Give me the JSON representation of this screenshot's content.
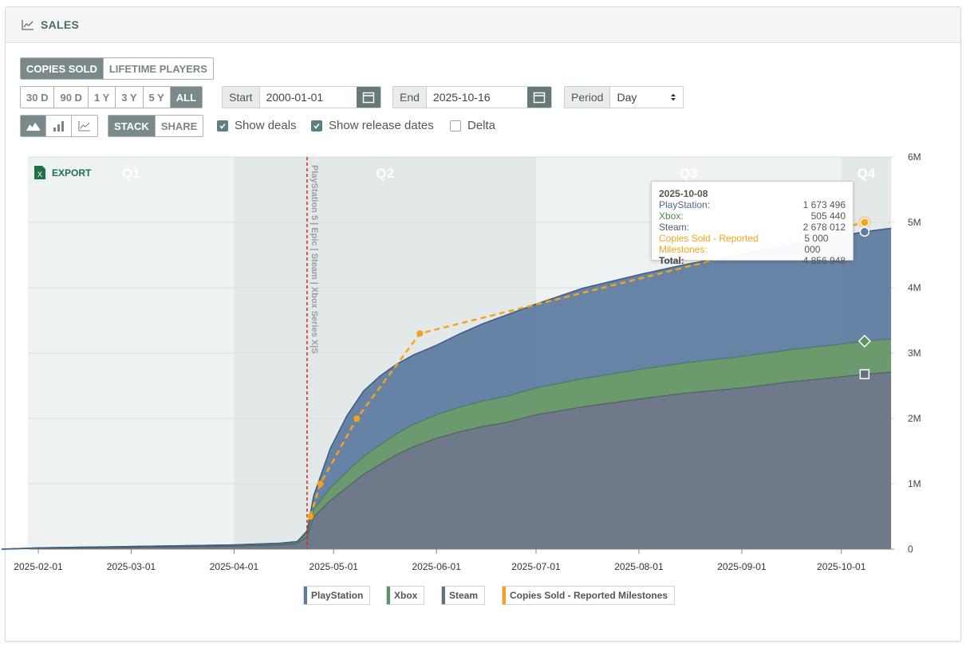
{
  "panel": {
    "title": "SALES",
    "icon": "chart-line-icon"
  },
  "metric_tabs": [
    {
      "label": "COPIES SOLD",
      "active": true
    },
    {
      "label": "LIFETIME PLAYERS",
      "active": false
    }
  ],
  "range_buttons": [
    {
      "label": "30 D",
      "active": false
    },
    {
      "label": "90 D",
      "active": false
    },
    {
      "label": "1 Y",
      "active": false
    },
    {
      "label": "3 Y",
      "active": false
    },
    {
      "label": "5 Y",
      "active": false
    },
    {
      "label": "ALL",
      "active": true
    }
  ],
  "start": {
    "label": "Start",
    "value": "2000-01-01"
  },
  "end": {
    "label": "End",
    "value": "2025-10-16"
  },
  "period": {
    "label": "Period",
    "value": "Day"
  },
  "chart_type_buttons": [
    {
      "icon": "area-chart-icon",
      "active": true
    },
    {
      "icon": "bar-chart-icon",
      "active": false
    },
    {
      "icon": "line-chart-icon",
      "active": false
    }
  ],
  "mode_buttons": [
    {
      "label": "STACK",
      "active": true
    },
    {
      "label": "SHARE",
      "active": false
    }
  ],
  "options": [
    {
      "label": "Show deals",
      "checked": true
    },
    {
      "label": "Show release dates",
      "checked": true
    },
    {
      "label": "Delta",
      "checked": false
    }
  ],
  "export_label": "EXPORT",
  "colors": {
    "playstation": "#5b7aa0",
    "xbox": "#5f9262",
    "steam": "#646f80",
    "milestones": "#f5a31a",
    "release_line": "#dd2222"
  },
  "chart_data": {
    "type": "area",
    "stacked": true,
    "x_ticks": [
      "2025-02-01",
      "2025-03-01",
      "2025-04-01",
      "2025-05-01",
      "2025-06-01",
      "2025-07-01",
      "2025-08-01",
      "2025-09-01",
      "2025-10-01"
    ],
    "y_ticks": [
      "0",
      "1M",
      "2M",
      "3M",
      "4M",
      "5M",
      "6M"
    ],
    "ylim": [
      0,
      6000000
    ],
    "xlim": [
      "2025-01-18",
      "2025-10-16"
    ],
    "quarters": [
      "Q1",
      "Q2",
      "Q3",
      "Q4"
    ],
    "release_marker": {
      "date": "2025-04-23",
      "label": "PlayStation 5 | Epic | Steam | Xbox Series X|S"
    },
    "series": [
      {
        "name": "Steam",
        "points": [
          [
            "2025-01-21",
            0
          ],
          [
            "2025-02-01",
            15000
          ],
          [
            "2025-03-01",
            30000
          ],
          [
            "2025-04-01",
            50000
          ],
          [
            "2025-04-15",
            70000
          ],
          [
            "2025-04-20",
            90000
          ],
          [
            "2025-04-23",
            200000
          ],
          [
            "2025-04-25",
            500000
          ],
          [
            "2025-04-30",
            750000
          ],
          [
            "2025-05-05",
            950000
          ],
          [
            "2025-05-10",
            1150000
          ],
          [
            "2025-05-15",
            1300000
          ],
          [
            "2025-05-20",
            1450000
          ],
          [
            "2025-05-25",
            1570000
          ],
          [
            "2025-06-01",
            1700000
          ],
          [
            "2025-06-08",
            1800000
          ],
          [
            "2025-06-15",
            1880000
          ],
          [
            "2025-06-22",
            1940000
          ],
          [
            "2025-07-01",
            2060000
          ],
          [
            "2025-07-15",
            2180000
          ],
          [
            "2025-08-01",
            2300000
          ],
          [
            "2025-08-15",
            2390000
          ],
          [
            "2025-09-01",
            2470000
          ],
          [
            "2025-09-15",
            2560000
          ],
          [
            "2025-10-01",
            2640000
          ],
          [
            "2025-10-08",
            2678012
          ],
          [
            "2025-10-16",
            2710000
          ]
        ]
      },
      {
        "name": "Xbox",
        "points": [
          [
            "2025-01-21",
            0
          ],
          [
            "2025-02-01",
            5000
          ],
          [
            "2025-03-01",
            10000
          ],
          [
            "2025-04-01",
            15000
          ],
          [
            "2025-04-15",
            20000
          ],
          [
            "2025-04-20",
            25000
          ],
          [
            "2025-04-23",
            50000
          ],
          [
            "2025-04-25",
            120000
          ],
          [
            "2025-04-30",
            190000
          ],
          [
            "2025-05-05",
            240000
          ],
          [
            "2025-05-10",
            270000
          ],
          [
            "2025-05-15",
            300000
          ],
          [
            "2025-05-20",
            320000
          ],
          [
            "2025-05-25",
            340000
          ],
          [
            "2025-06-01",
            360000
          ],
          [
            "2025-06-08",
            375000
          ],
          [
            "2025-06-15",
            390000
          ],
          [
            "2025-06-22",
            400000
          ],
          [
            "2025-07-01",
            410000
          ],
          [
            "2025-07-15",
            430000
          ],
          [
            "2025-08-01",
            450000
          ],
          [
            "2025-08-15",
            465000
          ],
          [
            "2025-09-01",
            480000
          ],
          [
            "2025-09-15",
            490000
          ],
          [
            "2025-10-01",
            500000
          ],
          [
            "2025-10-08",
            505440
          ],
          [
            "2025-10-16",
            510000
          ]
        ]
      },
      {
        "name": "PlayStation",
        "points": [
          [
            "2025-01-21",
            0
          ],
          [
            "2025-02-01",
            0
          ],
          [
            "2025-03-01",
            0
          ],
          [
            "2025-04-01",
            0
          ],
          [
            "2025-04-15",
            0
          ],
          [
            "2025-04-20",
            0
          ],
          [
            "2025-04-23",
            30000
          ],
          [
            "2025-04-25",
            200000
          ],
          [
            "2025-04-30",
            600000
          ],
          [
            "2025-05-05",
            850000
          ],
          [
            "2025-05-10",
            1000000
          ],
          [
            "2025-05-15",
            1050000
          ],
          [
            "2025-05-20",
            1060000
          ],
          [
            "2025-05-25",
            1060000
          ],
          [
            "2025-06-01",
            1060000
          ],
          [
            "2025-06-08",
            1120000
          ],
          [
            "2025-06-15",
            1180000
          ],
          [
            "2025-06-22",
            1240000
          ],
          [
            "2025-07-01",
            1280000
          ],
          [
            "2025-07-15",
            1380000
          ],
          [
            "2025-08-01",
            1450000
          ],
          [
            "2025-08-15",
            1500000
          ],
          [
            "2025-09-01",
            1560000
          ],
          [
            "2025-09-15",
            1610000
          ],
          [
            "2025-10-01",
            1650000
          ],
          [
            "2025-10-08",
            1673496
          ],
          [
            "2025-10-16",
            1690000
          ]
        ]
      }
    ],
    "milestones": {
      "name": "Copies Sold - Reported Milestones",
      "points": [
        [
          "2025-04-24",
          500000
        ],
        [
          "2025-04-27",
          1000000
        ],
        [
          "2025-05-08",
          2000000
        ],
        [
          "2025-05-27",
          3300000
        ],
        [
          "2025-10-08",
          5000000
        ]
      ]
    },
    "tooltip": {
      "date": "2025-10-08",
      "rows": [
        {
          "label": "PlayStation:",
          "value": "1 673 496",
          "color": "#4a6a90"
        },
        {
          "label": "Xbox:",
          "value": "505 440",
          "color": "#4f8a52"
        },
        {
          "label": "Steam:",
          "value": "2 678 012",
          "color": "#555e6c"
        },
        {
          "label": "Copies Sold - Reported Milestones:",
          "value": "5 000 000",
          "color": "#f5a31a"
        }
      ],
      "total_label": "Total:",
      "total_value": "4 856 948"
    },
    "legend": [
      "PlayStation",
      "Xbox",
      "Steam",
      "Copies Sold - Reported Milestones"
    ]
  }
}
